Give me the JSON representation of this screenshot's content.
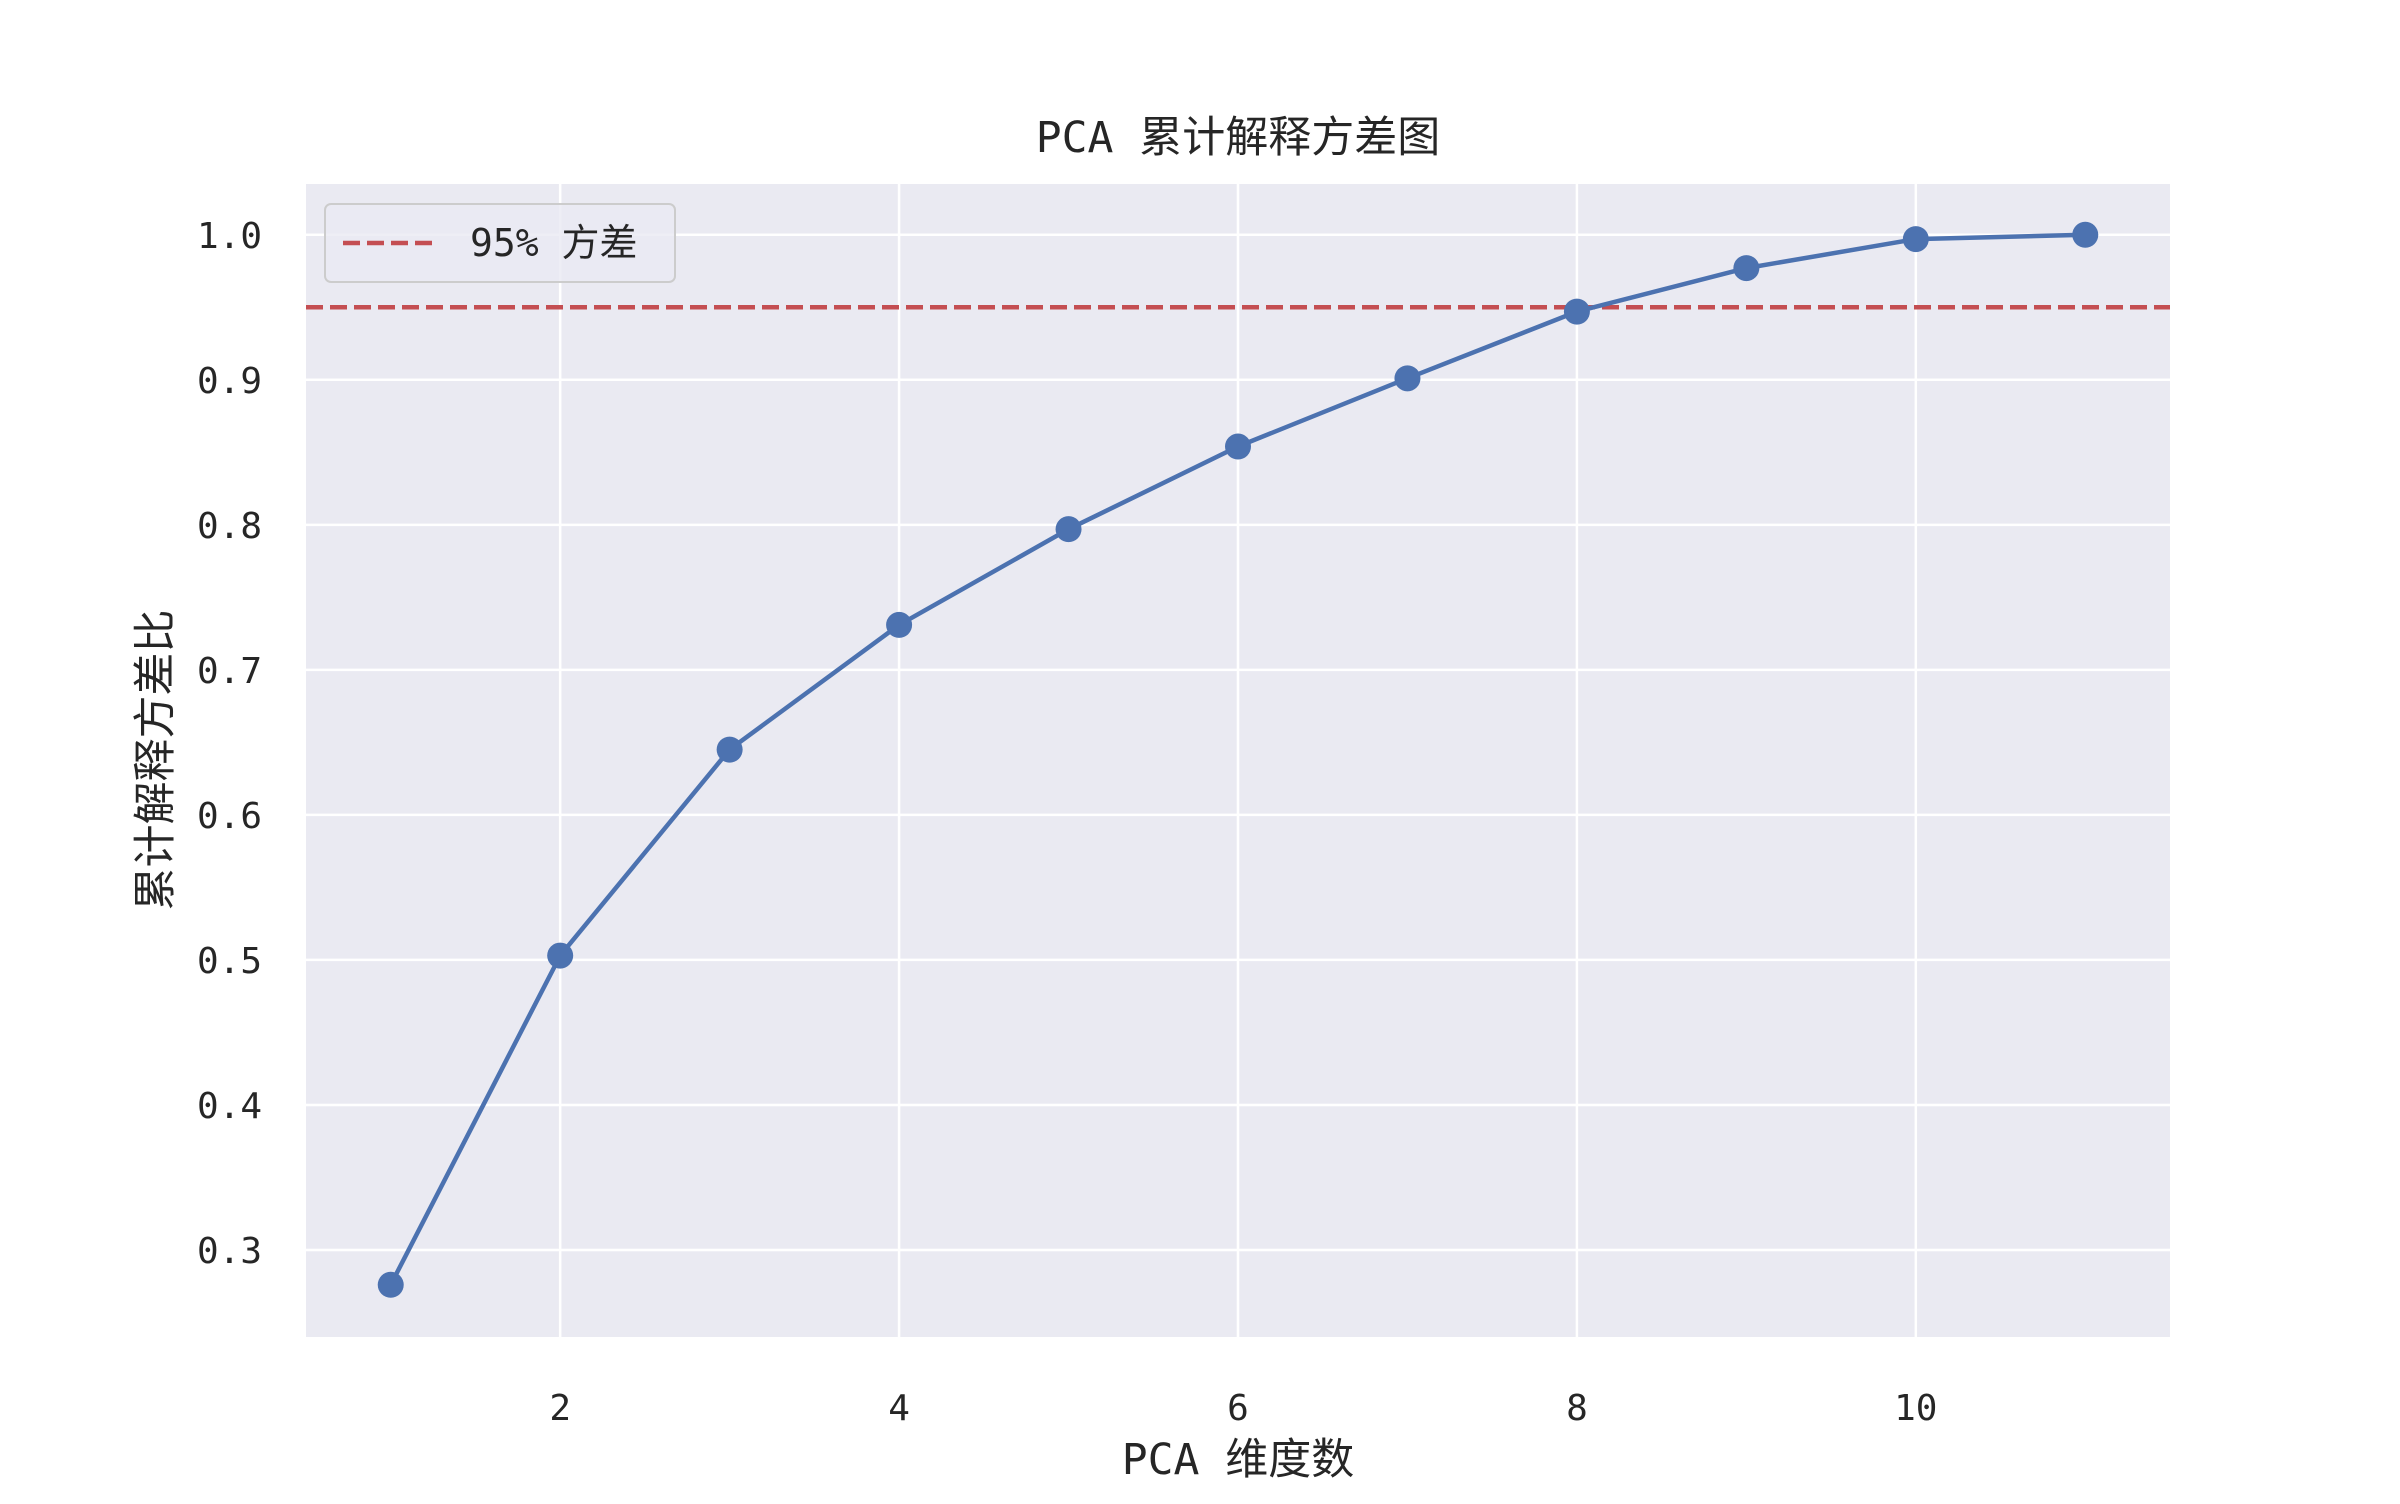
{
  "chart_data": {
    "type": "line",
    "title": "PCA 累计解释方差图",
    "xlabel": "PCA 维度数",
    "ylabel": "累计解释方差比",
    "x": [
      1,
      2,
      3,
      4,
      5,
      6,
      7,
      8,
      9,
      10,
      11
    ],
    "series": [
      {
        "values": [
          0.276,
          0.503,
          0.645,
          0.731,
          0.797,
          0.854,
          0.901,
          0.947,
          0.977,
          0.997,
          1.0
        ],
        "color": "#4c72b0",
        "marker": "circle"
      }
    ],
    "reference_lines": [
      {
        "y": 0.95,
        "label": "95% 方差",
        "color": "#c44e52",
        "style": "dashed"
      }
    ],
    "xlim": [
      0.5,
      11.5
    ],
    "ylim": [
      0.24,
      1.035
    ],
    "xticks": [
      2,
      4,
      6,
      8,
      10
    ],
    "xtick_labels": [
      "2",
      "4",
      "6",
      "8",
      "10"
    ],
    "yticks": [
      0.3,
      0.4,
      0.5,
      0.6,
      0.7,
      0.8,
      0.9,
      1.0
    ],
    "ytick_labels": [
      "0.3",
      "0.4",
      "0.5",
      "0.6",
      "0.7",
      "0.8",
      "0.9",
      "1.0"
    ],
    "grid": true,
    "legend": "top-left",
    "background_color": "#eaeaf2",
    "grid_color": "#ffffff"
  }
}
